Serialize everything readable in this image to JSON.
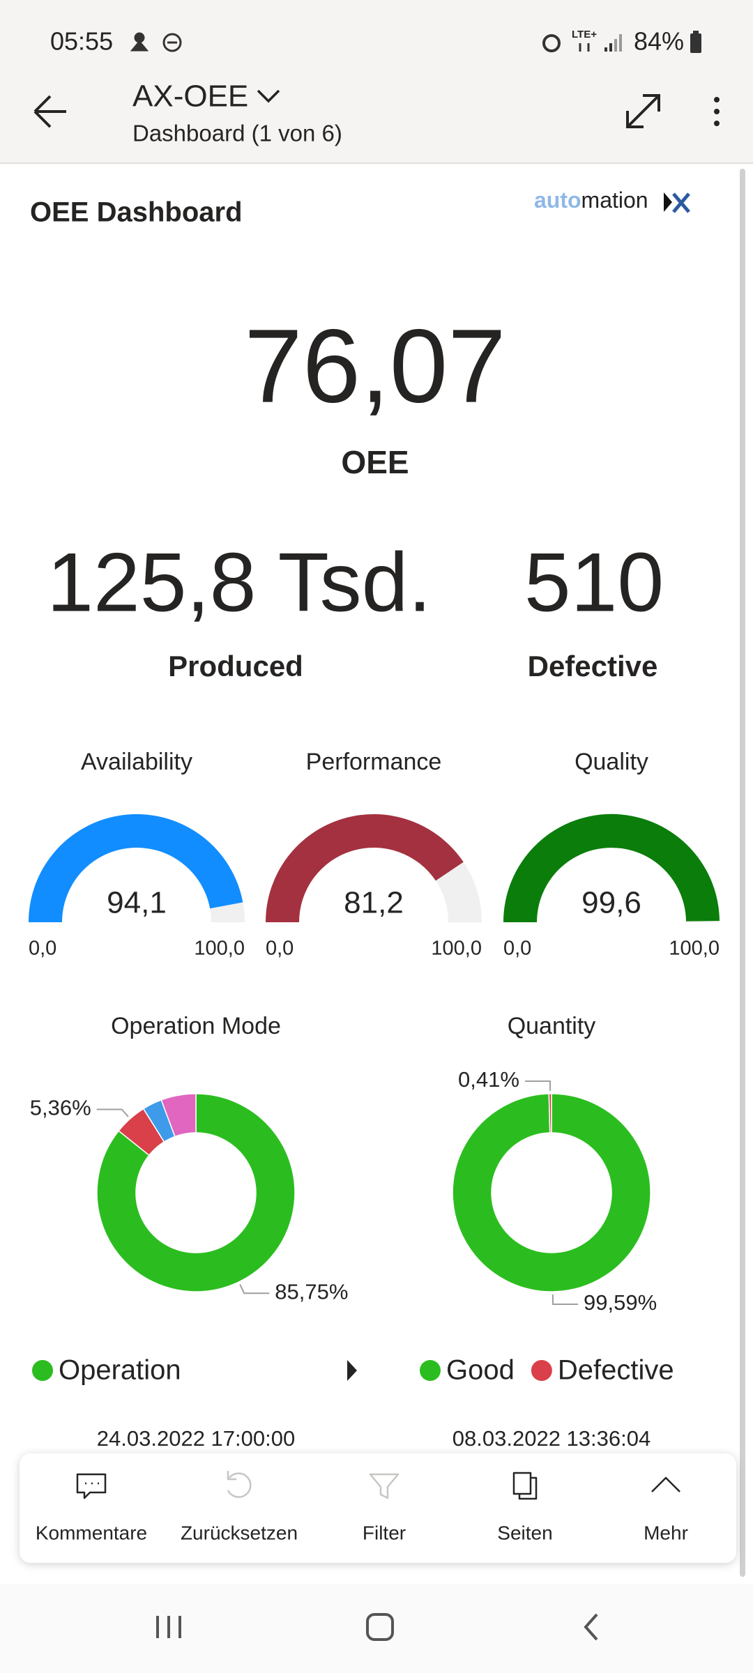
{
  "status_bar": {
    "time": "05:55",
    "network": "LTE+",
    "battery": "84%"
  },
  "header": {
    "title": "AX-OEE",
    "subtitle": "Dashboard (1 von 6)"
  },
  "report": {
    "title": "OEE Dashboard",
    "logo": [
      "auto",
      "mation"
    ],
    "kpis": [
      {
        "value": "76,07",
        "label": "OEE"
      },
      {
        "value": "125,8 Tsd.",
        "label": "Produced"
      },
      {
        "value": "510",
        "label": "Defective"
      }
    ],
    "gauges": [
      {
        "title": "Availability",
        "value": 94.1,
        "value_label": "94,1",
        "min": {
          "value": 0,
          "label": "0,0"
        },
        "max": {
          "value": 100,
          "label": "100,0"
        },
        "color": "#118dff"
      },
      {
        "title": "Performance",
        "value": 81.2,
        "value_label": "81,2",
        "min": {
          "value": 0,
          "label": "0,0"
        },
        "max": {
          "value": 100,
          "label": "100,0"
        },
        "color": "#a4313f"
      },
      {
        "title": "Quality",
        "value": 99.6,
        "value_label": "99,6",
        "min": {
          "value": 0,
          "label": "0,0"
        },
        "max": {
          "value": 100,
          "label": "100,0"
        },
        "color": "#0b7d0b"
      }
    ],
    "donuts": [
      {
        "title": "Operation Mode",
        "legend_paged": true,
        "timestamp": "24.03.2022 17:00:00",
        "slices": [
          {
            "name": "Operation",
            "color": "#2bbd1f",
            "value": 85.75,
            "label": "85,75%"
          },
          {
            "color": "#d9404a",
            "value": 5.36,
            "label": "5,36%"
          },
          {
            "color": "#3d9be9",
            "value": 3.2
          },
          {
            "color": "#e066c0",
            "value": 5.69
          }
        ]
      },
      {
        "title": "Quantity",
        "legend_paged": false,
        "timestamp": "08.03.2022 13:36:04",
        "slices": [
          {
            "name": "Good",
            "color": "#2bbd1f",
            "value": 99.59,
            "label": "99,59%"
          },
          {
            "name": "Defective",
            "color": "#d9404a",
            "value": 0.41,
            "label": "0,41%"
          }
        ]
      }
    ]
  },
  "toolbar": [
    {
      "label": "Kommentare",
      "enabled": true
    },
    {
      "label": "Zurücksetzen",
      "enabled": false
    },
    {
      "label": "Filter",
      "enabled": false
    },
    {
      "label": "Seiten",
      "enabled": true
    },
    {
      "label": "Mehr",
      "enabled": true
    }
  ]
}
